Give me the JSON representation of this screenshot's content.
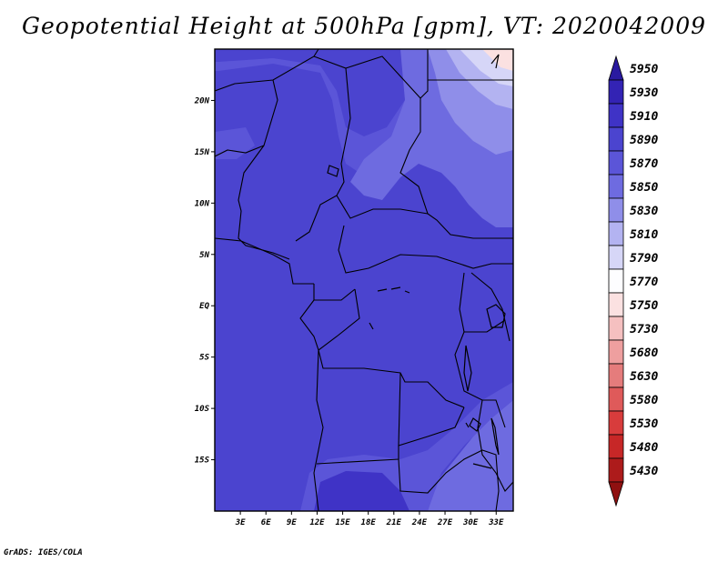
{
  "title": "Geopotential Height at 500hPa [gpm], VT: 2020042009",
  "credit": "GrADS: IGES/COLA",
  "map": {
    "lat_labels": [
      {
        "lat": 20,
        "text": "20N"
      },
      {
        "lat": 15,
        "text": "15N"
      },
      {
        "lat": 10,
        "text": "10N"
      },
      {
        "lat": 5,
        "text": "5N"
      },
      {
        "lat": 0,
        "text": "EQ"
      },
      {
        "lat": -5,
        "text": "5S"
      },
      {
        "lat": -10,
        "text": "10S"
      },
      {
        "lat": -15,
        "text": "15S"
      }
    ],
    "lon_labels": [
      {
        "lon": 3,
        "text": "3E"
      },
      {
        "lon": 6,
        "text": "6E"
      },
      {
        "lon": 9,
        "text": "9E"
      },
      {
        "lon": 12,
        "text": "12E"
      },
      {
        "lon": 15,
        "text": "15E"
      },
      {
        "lon": 18,
        "text": "18E"
      },
      {
        "lon": 21,
        "text": "21E"
      },
      {
        "lon": 24,
        "text": "24E"
      },
      {
        "lon": 27,
        "text": "27E"
      },
      {
        "lon": 30,
        "text": "30E"
      },
      {
        "lon": 33,
        "text": "33E"
      }
    ],
    "lon_range": [
      0,
      35
    ],
    "lat_range": [
      -20,
      25
    ]
  },
  "colorbar": {
    "levels": [
      "5950",
      "5930",
      "5910",
      "5890",
      "5870",
      "5850",
      "5830",
      "5810",
      "5790",
      "5770",
      "5750",
      "5730",
      "5680",
      "5630",
      "5580",
      "5530",
      "5480",
      "5430"
    ],
    "colors": [
      "#2a1aa0",
      "#3323b4",
      "#3f33c6",
      "#4b44cf",
      "#5b55d8",
      "#6e6be0",
      "#8f8ee9",
      "#b3b3f1",
      "#d6d6f7",
      "#fdfdff",
      "#fbe1e1",
      "#f5c0c0",
      "#ee9f9f",
      "#e57c7c",
      "#df5a5a",
      "#d83c3c",
      "#c72727",
      "#ad1b1b",
      "#8f1010"
    ]
  },
  "colors": {
    "field_base": "#4b44cf",
    "field_mid": "#5b55d8",
    "field_light": "#6e6be0",
    "field_dark": "#3f33c6",
    "field_pale": "#8f8ee9",
    "field_paler": "#b3b3f1",
    "field_palest": "#d6d6f7",
    "field_pink": "#fbe1e1"
  }
}
